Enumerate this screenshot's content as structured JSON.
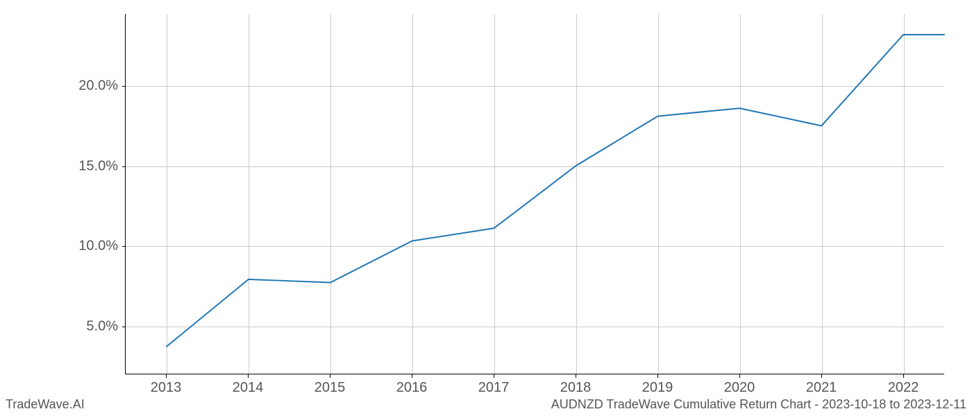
{
  "chart": {
    "type": "line",
    "x_values": [
      2013,
      2014,
      2015,
      2016,
      2017,
      2018,
      2019,
      2020,
      2021,
      2022,
      2022.5
    ],
    "y_values": [
      3.7,
      7.9,
      7.7,
      10.3,
      11.1,
      15.0,
      18.1,
      18.6,
      17.5,
      23.2,
      23.2
    ],
    "x_ticks": [
      2013,
      2014,
      2015,
      2016,
      2017,
      2018,
      2019,
      2020,
      2021,
      2022
    ],
    "x_tick_labels": [
      "2013",
      "2014",
      "2015",
      "2016",
      "2017",
      "2018",
      "2019",
      "2020",
      "2021",
      "2022"
    ],
    "y_ticks": [
      5.0,
      10.0,
      15.0,
      20.0
    ],
    "y_tick_labels": [
      "5.0%",
      "10.0%",
      "15.0%",
      "20.0%"
    ],
    "xlim": [
      2012.5,
      2022.5
    ],
    "ylim": [
      2.0,
      24.5
    ],
    "line_color": "#1f77b4",
    "line_width": 2,
    "grid_color": "#cccccc",
    "background_color": "#ffffff",
    "axis_color": "#000000",
    "tick_label_color": "#555555",
    "tick_label_fontsize": 20
  },
  "footer": {
    "left": "TradeWave.AI",
    "right": "AUDNZD TradeWave Cumulative Return Chart - 2023-10-18 to 2023-12-11"
  }
}
